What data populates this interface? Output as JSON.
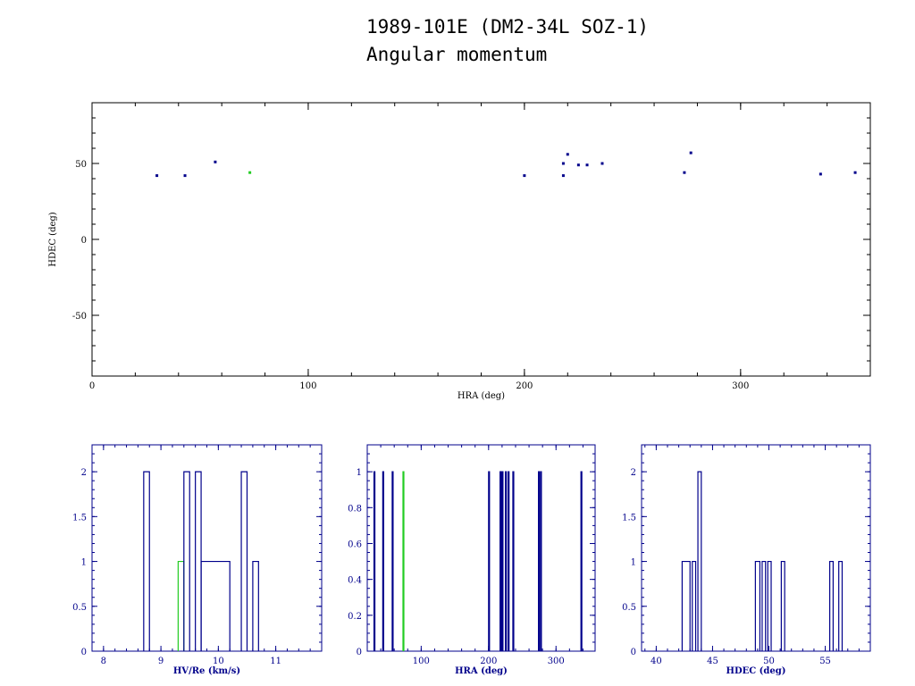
{
  "header": {
    "title_line1": "1989-101E (DM2-34L SOZ-1)",
    "title_line2": "Angular momentum"
  },
  "colors": {
    "primary": "#00008b",
    "highlight": "#22cc22",
    "axis_main": "#00008b"
  },
  "chart_data": [
    {
      "type": "scatter",
      "xlabel": "HRA (deg)",
      "ylabel": "HDEC (deg)",
      "xlim": [
        0,
        360
      ],
      "ylim": [
        -90,
        90
      ],
      "xticks": [
        0,
        100,
        200,
        300
      ],
      "yticks": [
        -50,
        0,
        50
      ],
      "series": [
        {
          "color": "#00008b",
          "points": [
            [
              30,
              42
            ],
            [
              43,
              42
            ],
            [
              57,
              51
            ],
            [
              200,
              42
            ],
            [
              218,
              42
            ],
            [
              218,
              50
            ],
            [
              220,
              56
            ],
            [
              225,
              49
            ],
            [
              229,
              49
            ],
            [
              236,
              50
            ],
            [
              274,
              44
            ],
            [
              277,
              57
            ],
            [
              337,
              43
            ],
            [
              353,
              44
            ]
          ]
        },
        {
          "color": "#22cc22",
          "points": [
            [
              73,
              44
            ]
          ]
        }
      ]
    },
    {
      "type": "histogram",
      "xlabel": "HV/Re (km/s)",
      "ylabel": "",
      "xlim": [
        7.8,
        11.8
      ],
      "ylim": [
        0,
        2.3
      ],
      "xticks": [
        8,
        9,
        10,
        11
      ],
      "yticks": [
        0,
        0.5,
        1,
        1.5,
        2
      ],
      "ytick_labels": [
        "0",
        "0.5",
        "1",
        "1.5",
        "2"
      ],
      "bins": [
        {
          "x0": 8.7,
          "x1": 8.8,
          "count": 2,
          "color": "#00008b"
        },
        {
          "x0": 9.3,
          "x1": 9.4,
          "count": 1,
          "color": "#22cc22"
        },
        {
          "x0": 9.4,
          "x1": 9.5,
          "count": 2,
          "color": "#00008b"
        },
        {
          "x0": 9.6,
          "x1": 9.7,
          "count": 2,
          "color": "#00008b"
        },
        {
          "x0": 9.7,
          "x1": 10.2,
          "count": 1,
          "color": "#00008b"
        },
        {
          "x0": 10.4,
          "x1": 10.5,
          "count": 2,
          "color": "#00008b"
        },
        {
          "x0": 10.6,
          "x1": 10.7,
          "count": 1,
          "color": "#00008b"
        }
      ]
    },
    {
      "type": "histogram",
      "xlabel": "HRA (deg)",
      "ylabel": "",
      "xlim": [
        20,
        358
      ],
      "ylim": [
        0,
        1.15
      ],
      "xticks": [
        100,
        200,
        300
      ],
      "yticks": [
        0,
        0.2,
        0.4,
        0.6,
        0.8,
        1
      ],
      "ytick_labels": [
        "0",
        "0.2",
        "0.4",
        "0.6",
        "0.8",
        "1"
      ],
      "bins": [
        {
          "x0": 30,
          "x1": 31,
          "count": 1,
          "color": "#00008b"
        },
        {
          "x0": 43,
          "x1": 44,
          "count": 1,
          "color": "#00008b"
        },
        {
          "x0": 57,
          "x1": 58,
          "count": 1,
          "color": "#00008b"
        },
        {
          "x0": 73,
          "x1": 74,
          "count": 1,
          "color": "#22cc22"
        },
        {
          "x0": 200,
          "x1": 201,
          "count": 1,
          "color": "#00008b"
        },
        {
          "x0": 217,
          "x1": 218,
          "count": 1,
          "color": "#00008b"
        },
        {
          "x0": 218,
          "x1": 219,
          "count": 1,
          "color": "#00008b"
        },
        {
          "x0": 220,
          "x1": 221,
          "count": 1,
          "color": "#00008b"
        },
        {
          "x0": 225,
          "x1": 226,
          "count": 1,
          "color": "#00008b"
        },
        {
          "x0": 229,
          "x1": 230,
          "count": 1,
          "color": "#00008b"
        },
        {
          "x0": 236,
          "x1": 237,
          "count": 1,
          "color": "#00008b"
        },
        {
          "x0": 274,
          "x1": 275,
          "count": 1,
          "color": "#00008b"
        },
        {
          "x0": 277,
          "x1": 278,
          "count": 1,
          "color": "#00008b"
        },
        {
          "x0": 337,
          "x1": 338,
          "count": 1,
          "color": "#00008b"
        }
      ]
    },
    {
      "type": "histogram",
      "xlabel": "HDEC (deg)",
      "ylabel": "",
      "xlim": [
        38.7,
        59
      ],
      "ylim": [
        0,
        2.3
      ],
      "xticks": [
        40,
        45,
        50,
        55
      ],
      "yticks": [
        0,
        0.5,
        1,
        1.5,
        2
      ],
      "ytick_labels": [
        "0",
        "0.5",
        "1",
        "1.5",
        "2"
      ],
      "bins": [
        {
          "x0": 42.3,
          "x1": 43.0,
          "count": 1,
          "color": "#00008b"
        },
        {
          "x0": 43.2,
          "x1": 43.5,
          "count": 1,
          "color": "#00008b"
        },
        {
          "x0": 43.7,
          "x1": 44.0,
          "count": 2,
          "color": "#00008b"
        },
        {
          "x0": 48.8,
          "x1": 49.2,
          "count": 1,
          "color": "#00008b"
        },
        {
          "x0": 49.4,
          "x1": 49.7,
          "count": 1,
          "color": "#00008b"
        },
        {
          "x0": 49.9,
          "x1": 50.2,
          "count": 1,
          "color": "#00008b"
        },
        {
          "x0": 51.1,
          "x1": 51.4,
          "count": 1,
          "color": "#00008b"
        },
        {
          "x0": 55.4,
          "x1": 55.7,
          "count": 1,
          "color": "#00008b"
        },
        {
          "x0": 56.2,
          "x1": 56.5,
          "count": 1,
          "color": "#00008b"
        }
      ]
    }
  ]
}
